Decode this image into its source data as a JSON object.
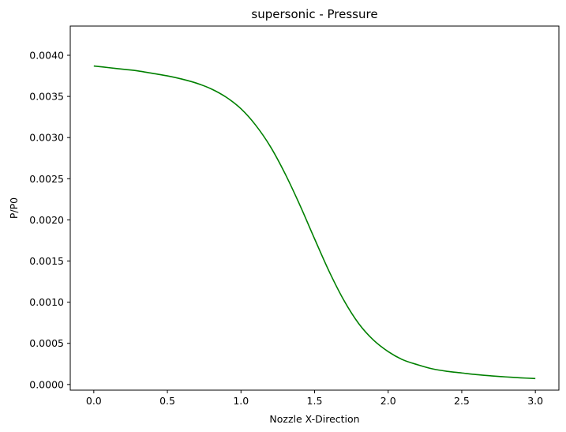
{
  "chart_data": {
    "type": "line",
    "title": "supersonic - Pressure",
    "xlabel": "Nozzle X-Direction",
    "ylabel": "P/P0",
    "xlim": [
      -0.16,
      3.16
    ],
    "ylim": [
      -6.88e-05,
      0.004355
    ],
    "xticks": [
      0.0,
      0.5,
      1.0,
      1.5,
      2.0,
      2.5,
      3.0
    ],
    "xtick_labels": [
      "0.0",
      "0.5",
      "1.0",
      "1.5",
      "2.0",
      "2.5",
      "3.0"
    ],
    "yticks": [
      0.0,
      0.0005,
      0.001,
      0.0015,
      0.002,
      0.0025,
      0.003,
      0.0035,
      0.004
    ],
    "ytick_labels": [
      "0.0000",
      "0.0005",
      "0.0010",
      "0.0015",
      "0.0020",
      "0.0025",
      "0.0030",
      "0.0035",
      "0.0040"
    ],
    "grid": false,
    "series": [
      {
        "name": "P/P0",
        "color": "#008000",
        "x": [
          0.0,
          0.1,
          0.2,
          0.3,
          0.4,
          0.5,
          0.6,
          0.7,
          0.8,
          0.9,
          1.0,
          1.1,
          1.2,
          1.3,
          1.4,
          1.5,
          1.6,
          1.7,
          1.8,
          1.9,
          2.0,
          2.1,
          2.2,
          2.3,
          2.4,
          2.5,
          2.6,
          2.7,
          2.8,
          2.9,
          3.0
        ],
        "y": [
          0.00387,
          0.00385,
          0.00383,
          0.00381,
          0.00378,
          0.00375,
          0.00371,
          0.00366,
          0.00359,
          0.00349,
          0.00335,
          0.00315,
          0.00289,
          0.00256,
          0.00218,
          0.00177,
          0.00137,
          0.00102,
          0.00074,
          0.00054,
          0.0004,
          0.0003,
          0.00024,
          0.00019,
          0.00016,
          0.00014,
          0.00012,
          0.000105,
          9.2e-05,
          8.1e-05,
          7.2e-05
        ]
      }
    ]
  }
}
